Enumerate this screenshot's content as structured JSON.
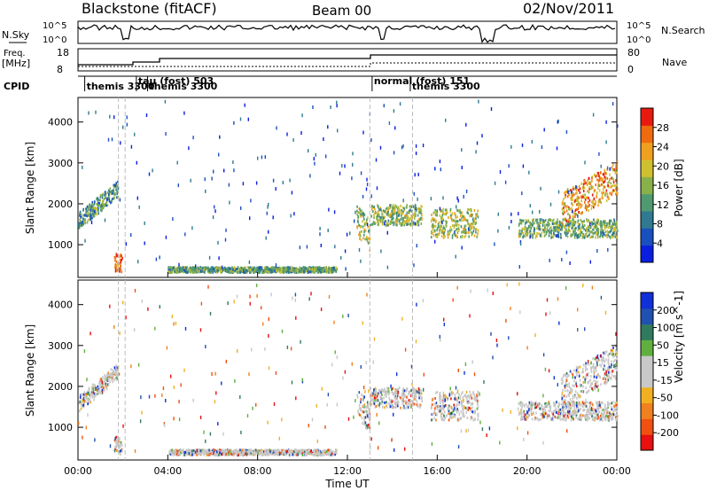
{
  "header": {
    "station": "Blackstone (fitACF)",
    "beam": "Beam 00",
    "date": "02/Nov/2011"
  },
  "strips": {
    "nsky_label": "N.Sky",
    "nsearch_label": "N.Search",
    "freq_label_1": "Freq.",
    "freq_label_2": "[MHz]",
    "nave_label": "Nave",
    "cpid_label": "CPID",
    "nsky_ticks": [
      "10^5",
      "10^0"
    ],
    "nsearch_ticks": [
      "10^5",
      "10^0"
    ],
    "freq_ticks": [
      "18",
      "8"
    ],
    "nave_ticks": [
      "80",
      "0"
    ],
    "cpid_entries": [
      {
        "text": "themis 3300",
        "hour": 0.3
      },
      {
        "text": "tau (fost) 503",
        "hour": 2.6
      },
      {
        "text": "themis 3300",
        "hour": 3.1
      },
      {
        "text": "normal (fost) 151",
        "hour": 13.1
      },
      {
        "text": "themis 3300",
        "hour": 14.8
      }
    ]
  },
  "colors": {
    "power_scale": [
      "#0a1ee0",
      "#1a4fc0",
      "#2f7a90",
      "#4f9a70",
      "#88b14a",
      "#cfc030",
      "#f0a020",
      "#f06a10",
      "#e81a10"
    ],
    "velocity_scale": [
      "#1030d8",
      "#2050b0",
      "#307a60",
      "#60b040",
      "#c8c8c8",
      "#c8c8c8",
      "#f0b020",
      "#f08020",
      "#f05010",
      "#e81010"
    ],
    "ground_scatter": "#c0c0c0"
  },
  "chart_data": [
    {
      "type": "heatmap",
      "title": "",
      "xlabel": "Time UT",
      "ylabel": "Slant Range [km]",
      "xlim": [
        0,
        24
      ],
      "ylim": [
        200,
        4600
      ],
      "x_ticks": [
        "00:00",
        "04:00",
        "08:00",
        "12:00",
        "16:00",
        "20:00",
        "00:00"
      ],
      "y_ticks": [
        1000,
        2000,
        3000,
        4000
      ],
      "colorbar": {
        "label": "Power [dB]",
        "ticks": [
          4,
          8,
          12,
          16,
          20,
          24,
          28
        ],
        "range": [
          0,
          32
        ]
      },
      "scatter_regions": [
        {
          "t0": 0.0,
          "t1": 1.8,
          "r0": 1400,
          "r1": 1800,
          "slope": 450,
          "level": 0.35
        },
        {
          "t0": 1.6,
          "t1": 1.95,
          "r0": 350,
          "r1": 800,
          "slope": 0,
          "level": 0.85
        },
        {
          "t0": 4.0,
          "t1": 11.5,
          "r0": 350,
          "r1": 480,
          "slope": 0,
          "level": 0.4
        },
        {
          "t0": 12.4,
          "t1": 13.0,
          "r0": 1250,
          "r1": 2000,
          "slope": -650,
          "level": 0.55
        },
        {
          "t0": 13.0,
          "t1": 15.3,
          "r0": 1500,
          "r1": 2000,
          "slope": 0,
          "level": 0.5
        },
        {
          "t0": 15.7,
          "t1": 17.8,
          "r0": 1200,
          "r1": 1900,
          "slope": 0,
          "level": 0.55
        },
        {
          "t0": 19.6,
          "t1": 24.0,
          "r0": 1200,
          "r1": 1650,
          "slope": 0,
          "level": 0.45
        },
        {
          "t0": 21.5,
          "t1": 24.0,
          "r0": 1500,
          "r1": 2300,
          "slope": 300,
          "level": 0.75
        }
      ]
    },
    {
      "type": "heatmap",
      "title": "",
      "xlabel": "Time UT",
      "ylabel": "Slant Range [km]",
      "xlim": [
        0,
        24
      ],
      "ylim": [
        200,
        4600
      ],
      "x_ticks": [
        "00:00",
        "04:00",
        "08:00",
        "12:00",
        "16:00",
        "20:00",
        "00:00"
      ],
      "y_ticks": [
        1000,
        2000,
        3000,
        4000
      ],
      "colorbar": {
        "label": "Velocity [m s^-1]",
        "ticks": [
          200,
          100,
          50,
          15,
          -15,
          -50,
          -100,
          -200
        ],
        "range": [
          -250,
          250
        ]
      },
      "scatter_regions": [
        {
          "t0": 0.0,
          "t1": 1.8,
          "r0": 1400,
          "r1": 1800,
          "slope": 450,
          "level": 0.5
        },
        {
          "t0": 1.6,
          "t1": 1.95,
          "r0": 350,
          "r1": 800,
          "slope": 0,
          "level": 0.5
        },
        {
          "t0": 4.0,
          "t1": 11.5,
          "r0": 350,
          "r1": 480,
          "slope": 0,
          "level": 0.7
        },
        {
          "t0": 12.4,
          "t1": 13.0,
          "r0": 1250,
          "r1": 2000,
          "slope": -650,
          "level": 0.35
        },
        {
          "t0": 13.0,
          "t1": 15.3,
          "r0": 1500,
          "r1": 2000,
          "slope": 0,
          "level": 0.5
        },
        {
          "t0": 15.7,
          "t1": 17.8,
          "r0": 1200,
          "r1": 1900,
          "slope": 0,
          "level": 0.5
        },
        {
          "t0": 19.6,
          "t1": 24.0,
          "r0": 1200,
          "r1": 1650,
          "slope": 0,
          "level": 0.5
        },
        {
          "t0": 21.5,
          "t1": 24.0,
          "r0": 1500,
          "r1": 2300,
          "slope": 300,
          "level": 0.5
        }
      ]
    }
  ]
}
